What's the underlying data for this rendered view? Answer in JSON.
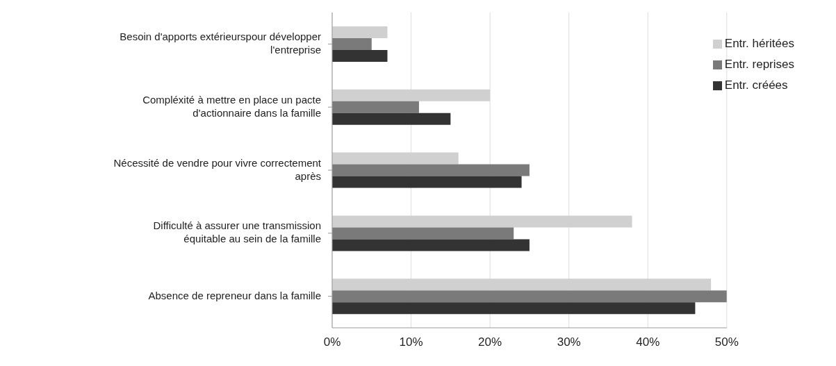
{
  "chart_data": {
    "type": "bar",
    "orientation": "horizontal",
    "categories": [
      "Besoin d'apports extérieurspour développer l'entreprise",
      "Compléxité à mettre en place un pacte d'actionnaire dans la famille",
      "Nécessité de vendre pour vivre correctement après",
      "Difficulté à assurer une transmission équitable au sein de la famille",
      "Absence de repreneur dans la famille"
    ],
    "series": [
      {
        "name": "Entr. héritées",
        "color": "#d0d0d0",
        "values": [
          7,
          20,
          16,
          38,
          48
        ]
      },
      {
        "name": "Entr. reprises",
        "color": "#7a7a7a",
        "values": [
          5,
          11,
          25,
          23,
          50
        ]
      },
      {
        "name": "Entr. créées",
        "color": "#333333",
        "values": [
          7,
          15,
          24,
          25,
          46
        ]
      }
    ],
    "xlim": [
      0,
      50
    ],
    "xticks": [
      {
        "value": 0,
        "label": "0%"
      },
      {
        "value": 10,
        "label": "10%"
      },
      {
        "value": 20,
        "label": "20%"
      },
      {
        "value": 30,
        "label": "30%"
      },
      {
        "value": 40,
        "label": "40%"
      },
      {
        "value": 50,
        "label": "50%"
      }
    ],
    "grid": "x",
    "legend": "top right"
  }
}
